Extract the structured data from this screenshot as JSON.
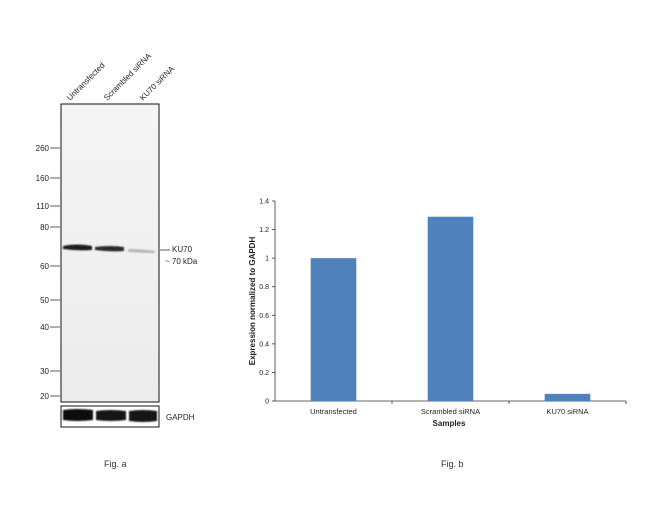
{
  "figure_a": {
    "caption": "Fig. a",
    "lane_labels": [
      "Untransfected",
      "Scrambled siRNA",
      "KU70 siRNA"
    ],
    "marker_labels": [
      "260",
      "160",
      "110",
      "80",
      "60",
      "50",
      "40",
      "30",
      "20"
    ],
    "band_label_line1": "KU70",
    "band_label_line2": "~ 70 kDa",
    "loading_control_label": "GAPDH"
  },
  "figure_b": {
    "caption": "Fig. b"
  },
  "chart_data": {
    "type": "bar",
    "categories": [
      "Untransfected",
      "Scrambled siRNA",
      "KU70 siRNA"
    ],
    "values": [
      1.0,
      1.29,
      0.05
    ],
    "xlabel": "Samples",
    "ylabel": "Expression normalized to GAPDH",
    "ylim": [
      0,
      1.4
    ],
    "yticks": [
      "0",
      "0.2",
      "0.4",
      "0.6",
      "0.8",
      "1",
      "1.2",
      "1.4"
    ],
    "bar_color": "#4f81bd",
    "grid": false,
    "legend": "none"
  }
}
